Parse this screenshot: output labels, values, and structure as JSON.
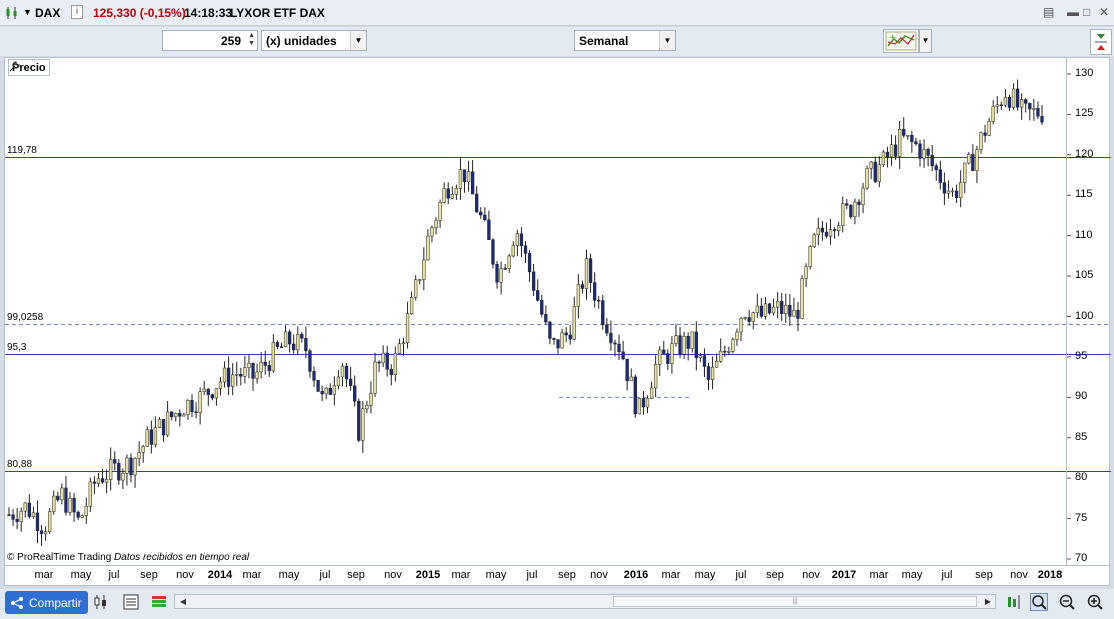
{
  "window": {
    "symbol": "DAX",
    "price_change": "125,330 (-0,15%)",
    "time": "14:18:33",
    "instrument_name": "LYXOR ETF DAX"
  },
  "toolbar": {
    "units_value": "259",
    "units_label": "(x) unidades",
    "timeframe": "Semanal"
  },
  "chart": {
    "panel_label": "Precio",
    "attribution": "© ProRealTime Trading",
    "attribution_note": "Datos recibidos en tiempo real",
    "price_lines": [
      {
        "label": "119,78",
        "value": 119.78,
        "style": "solid"
      },
      {
        "label": "99,0258",
        "value": 99.0258,
        "style": "dashed"
      },
      {
        "label": "95,3",
        "value": 95.3,
        "style": "solid"
      },
      {
        "label": "80,88",
        "value": 80.88,
        "style": "solid"
      }
    ],
    "y_ticks": [
      "130",
      "125",
      "120",
      "115",
      "110",
      "105",
      "100",
      "95",
      "90",
      "85",
      "80",
      "75",
      "70"
    ],
    "x_ticks": [
      "mar",
      "may",
      "jul",
      "sep",
      "nov",
      "2014",
      "mar",
      "may",
      "jul",
      "sep",
      "nov",
      "2015",
      "mar",
      "may",
      "jul",
      "sep",
      "nov",
      "2016",
      "mar",
      "may",
      "jul",
      "sep",
      "nov",
      "2017",
      "mar",
      "may",
      "jul",
      "sep",
      "nov",
      "2018"
    ]
  },
  "chart_data": {
    "type": "candlestick",
    "timeframe": "weekly",
    "ylim": [
      70,
      131
    ],
    "grid": false,
    "bull_color": "#e8e2a0",
    "bear_color": "#1b2a7c",
    "series_close_path": [
      [
        "2013-02",
        75.5
      ],
      [
        "2013-03",
        76.5
      ],
      [
        "2013-04",
        74
      ],
      [
        "2013-05",
        78
      ],
      [
        "2013-06",
        74.5
      ],
      [
        "2013-07",
        80
      ],
      [
        "2013-08",
        81
      ],
      [
        "2013-09",
        82
      ],
      [
        "2013-10",
        85
      ],
      [
        "2013-11",
        87
      ],
      [
        "2013-12",
        89
      ],
      [
        "2014-01",
        90
      ],
      [
        "2014-02",
        92
      ],
      [
        "2014-03",
        93
      ],
      [
        "2014-04",
        92.5
      ],
      [
        "2014-05",
        95
      ],
      [
        "2014-06",
        97
      ],
      [
        "2014-07",
        96
      ],
      [
        "2014-08",
        89
      ],
      [
        "2014-09",
        95
      ],
      [
        "2014-10",
        86
      ],
      [
        "2014-11",
        94
      ],
      [
        "2014-12",
        94
      ],
      [
        "2015-01",
        101
      ],
      [
        "2015-02",
        110
      ],
      [
        "2015-03",
        116
      ],
      [
        "2015-04",
        118
      ],
      [
        "2015-05",
        112
      ],
      [
        "2015-06",
        105
      ],
      [
        "2015-07",
        111
      ],
      [
        "2015-08",
        104
      ],
      [
        "2015-09",
        96
      ],
      [
        "2015-10",
        98
      ],
      [
        "2015-11",
        106
      ],
      [
        "2015-12",
        100
      ],
      [
        "2016-01",
        96
      ],
      [
        "2016-02",
        88
      ],
      [
        "2016-03",
        94
      ],
      [
        "2016-04",
        96
      ],
      [
        "2016-05",
        97
      ],
      [
        "2016-06",
        92
      ],
      [
        "2016-07",
        96
      ],
      [
        "2016-08",
        101
      ],
      [
        "2016-09",
        100
      ],
      [
        "2016-10",
        101
      ],
      [
        "2016-11",
        100
      ],
      [
        "2016-12",
        109
      ],
      [
        "2017-01",
        112
      ],
      [
        "2017-02",
        113
      ],
      [
        "2017-03",
        117
      ],
      [
        "2017-04",
        119
      ],
      [
        "2017-05",
        122
      ],
      [
        "2017-06",
        121
      ],
      [
        "2017-07",
        118
      ],
      [
        "2017-08",
        115
      ],
      [
        "2017-09",
        119
      ],
      [
        "2017-10",
        124
      ],
      [
        "2017-11",
        128
      ],
      [
        "2017-12",
        125
      ],
      [
        "2018-01",
        125.3
      ]
    ],
    "horizontal_lines": [
      119.78,
      99.0258,
      95.3,
      80.88
    ],
    "dashed_segment_2015_2016": 90
  },
  "bottombar": {
    "share_label": "Compartir"
  },
  "colors": {
    "price_down": "#c00000",
    "level_line": "#3a3fb0",
    "share_button": "#2f6fd3"
  }
}
